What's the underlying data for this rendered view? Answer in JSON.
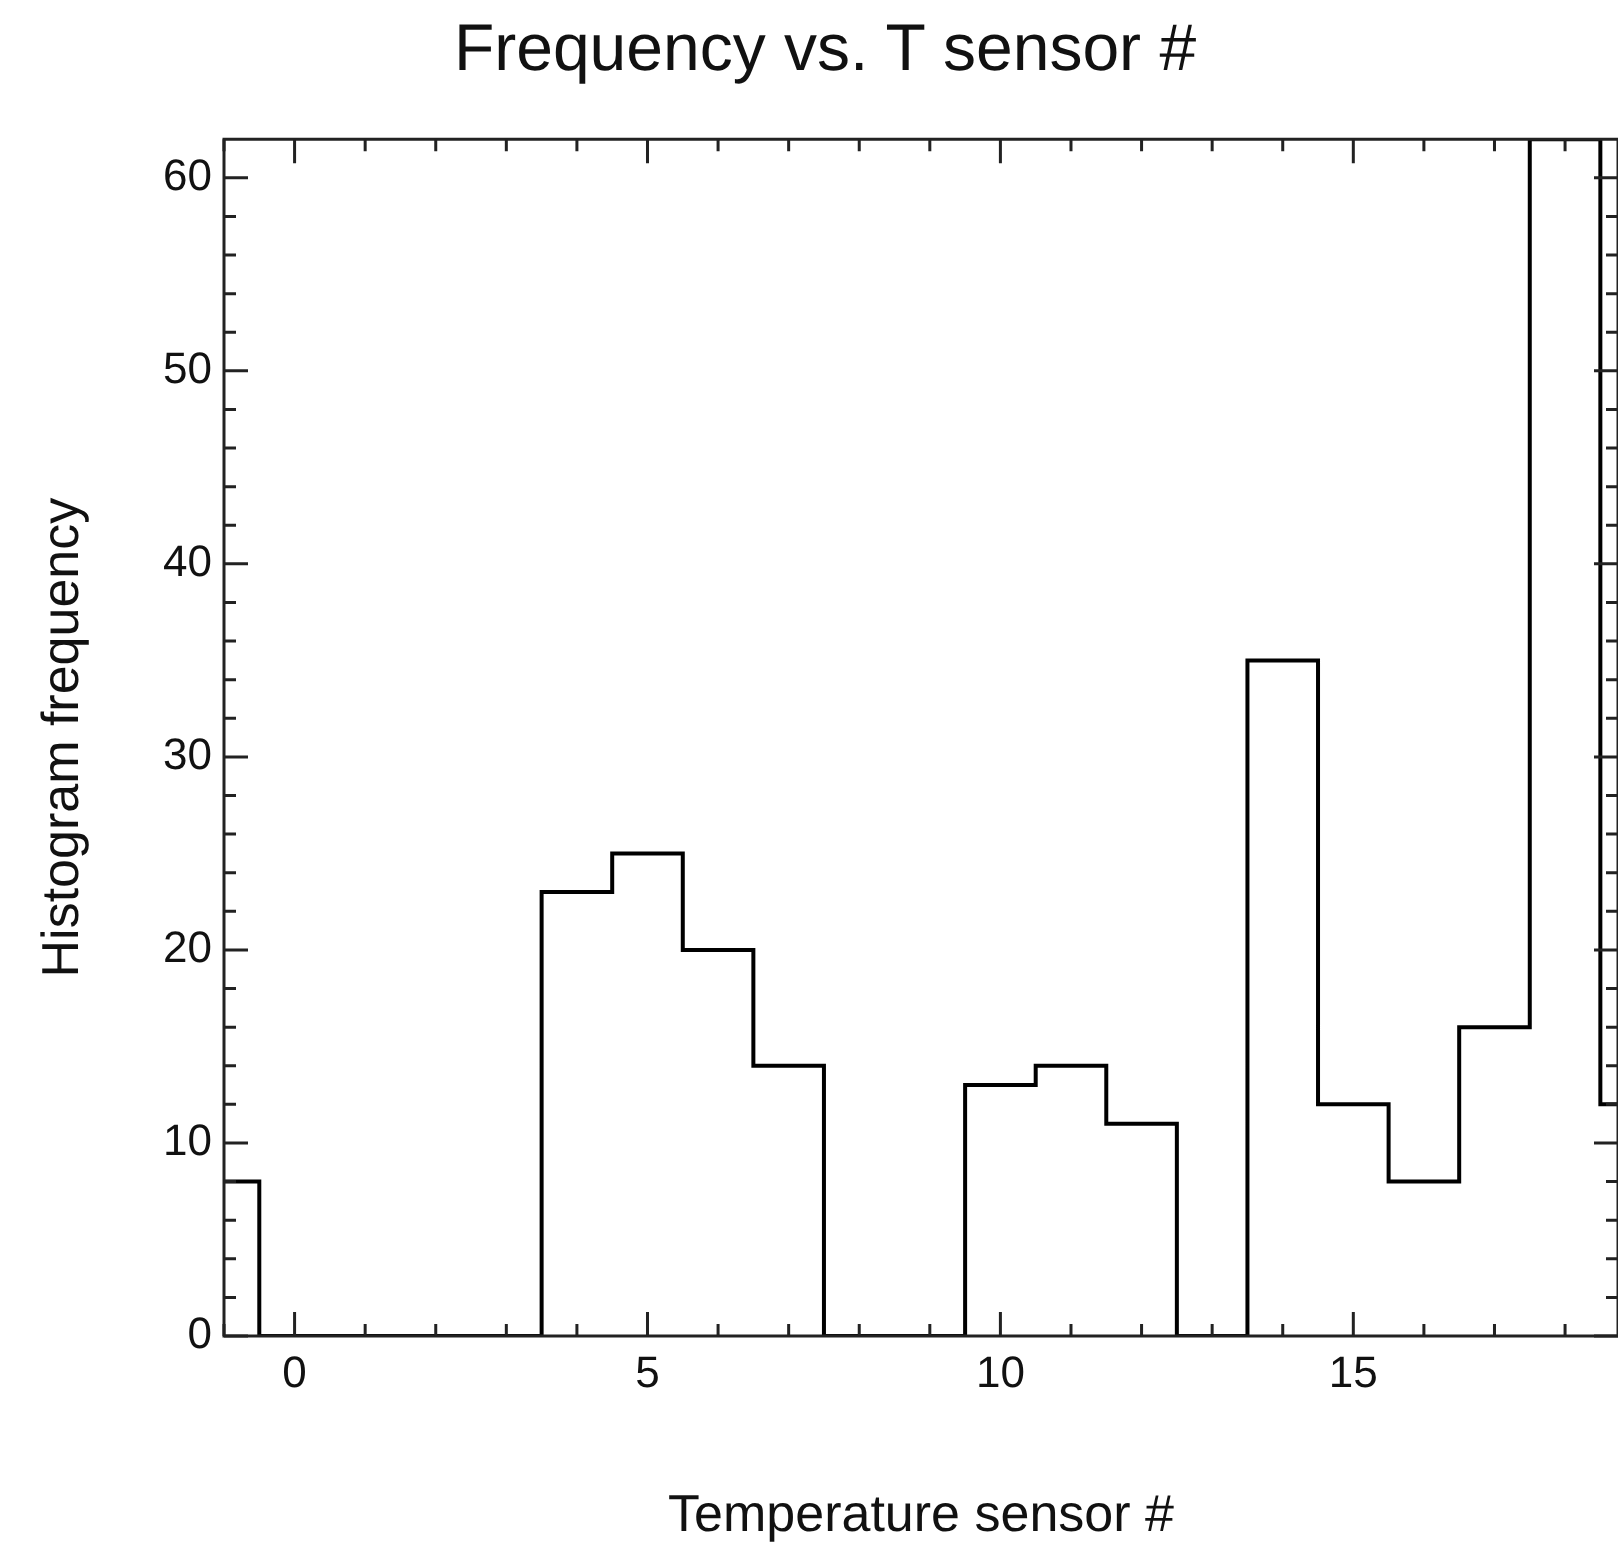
{
  "chart_data": {
    "type": "histogram",
    "title": "Frequency vs. T sensor #",
    "xlabel": "Temperature sensor #",
    "ylabel": "Histogram frequency",
    "bins": [
      -1.5,
      -0.5,
      0.5,
      1.5,
      2.5,
      3.5,
      4.5,
      5.5,
      6.5,
      7.5,
      8.5,
      9.5,
      10.5,
      11.5,
      12.5,
      13.5,
      14.5,
      15.5,
      16.5,
      17.5,
      18.5,
      19.5
    ],
    "values": [
      8,
      0,
      0,
      0,
      0,
      23,
      25,
      20,
      14,
      0,
      0,
      13,
      14,
      11,
      0,
      35,
      12,
      8,
      16,
      62,
      12
    ],
    "color": "#000000",
    "xlim": [
      -1,
      18.75
    ],
    "ylim": [
      0,
      62
    ],
    "xticks": [
      {
        "value": -1,
        "label": null
      },
      0,
      {
        "value": 1,
        "label": null
      },
      {
        "value": 2,
        "label": null
      },
      {
        "value": 3,
        "label": null
      },
      {
        "value": 4,
        "label": null
      },
      5,
      {
        "value": 6,
        "label": null
      },
      {
        "value": 7,
        "label": null
      },
      {
        "value": 8,
        "label": null
      },
      {
        "value": 9,
        "label": null
      },
      10,
      {
        "value": 11,
        "label": null
      },
      {
        "value": 12,
        "label": null
      },
      {
        "value": 13,
        "label": null
      },
      {
        "value": 14,
        "label": null
      },
      15,
      {
        "value": 16,
        "label": null
      },
      {
        "value": 17,
        "label": null
      },
      {
        "value": 18,
        "label": null
      }
    ],
    "yticks": [
      0,
      {
        "value": 2,
        "label": null
      },
      {
        "value": 4,
        "label": null
      },
      {
        "value": 6,
        "label": null
      },
      {
        "value": 8,
        "label": null
      },
      10,
      {
        "value": 12,
        "label": null
      },
      {
        "value": 14,
        "label": null
      },
      {
        "value": 16,
        "label": null
      },
      {
        "value": 18,
        "label": null
      },
      20,
      {
        "value": 22,
        "label": null
      },
      {
        "value": 24,
        "label": null
      },
      {
        "value": 26,
        "label": null
      },
      {
        "value": 28,
        "label": null
      },
      30,
      {
        "value": 32,
        "label": null
      },
      {
        "value": 34,
        "label": null
      },
      {
        "value": 36,
        "label": null
      },
      {
        "value": 38,
        "label": null
      },
      40,
      {
        "value": 42,
        "label": null
      },
      {
        "value": 44,
        "label": null
      },
      {
        "value": 46,
        "label": null
      },
      {
        "value": 48,
        "label": null
      },
      50,
      {
        "value": 52,
        "label": null
      },
      {
        "value": 54,
        "label": null
      },
      {
        "value": 56,
        "label": null
      },
      {
        "value": 58,
        "label": null
      },
      60
    ],
    "grid": false,
    "legend": false
  }
}
